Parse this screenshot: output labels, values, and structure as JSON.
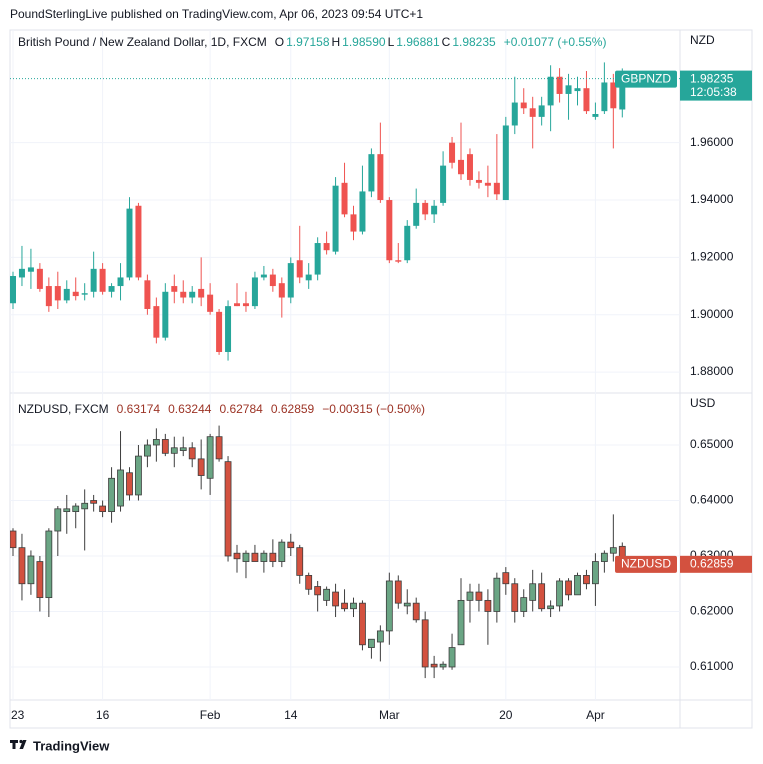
{
  "header": "PoundSterlingLive published on TradingView.com, Apr 06, 2023 09:54 UTC+1",
  "footer": "TradingView",
  "chart_data": [
    {
      "type": "candlestick",
      "title": "British Pound / New Zealand Dollar, 1D, FXCM",
      "legend_letters": [
        "O",
        "H",
        "L",
        "C"
      ],
      "legend_values": [
        "1.97158",
        "1.98590",
        "1.96881",
        "1.98235"
      ],
      "change": "+0.01077 (+0.55%)",
      "legend_color": "#26a69a",
      "currency": "NZD",
      "symbol": "GBPNZD",
      "countdown": "12:05:38",
      "up_color": "#26a69a",
      "down_color": "#ef5350",
      "border_color": null,
      "last_line": true,
      "open": [
        1.904,
        1.913,
        1.915,
        1.916,
        1.91,
        1.91,
        1.905,
        1.908,
        1.907,
        1.908,
        1.916,
        1.908,
        1.91,
        1.913,
        1.938,
        1.912,
        1.903,
        1.892,
        1.91,
        1.908,
        1.906,
        1.909,
        1.907,
        1.901,
        1.887,
        1.904,
        1.904,
        1.903,
        1.913,
        1.914,
        1.911,
        1.906,
        1.919,
        1.912,
        1.914,
        1.925,
        1.922,
        1.946,
        1.935,
        1.929,
        1.943,
        1.956,
        1.94,
        1.919,
        1.919,
        1.931,
        1.939,
        1.935,
        1.939,
        1.96,
        1.954,
        1.956,
        1.947,
        1.946,
        1.946,
        1.94,
        1.966,
        1.974,
        1.972,
        1.969,
        1.973,
        1.983,
        1.977,
        1.978,
        1.979,
        1.969,
        1.971,
        1.981,
        1.97158
      ],
      "high": [
        1.915,
        1.924,
        1.923,
        1.918,
        1.913,
        1.915,
        1.912,
        1.913,
        1.911,
        1.922,
        1.918,
        1.911,
        1.918,
        1.941,
        1.939,
        1.914,
        1.906,
        1.911,
        1.914,
        1.912,
        1.91,
        1.92,
        1.911,
        1.902,
        1.905,
        1.911,
        1.908,
        1.915,
        1.917,
        1.916,
        1.913,
        1.92,
        1.931,
        1.918,
        1.927,
        1.929,
        1.948,
        1.953,
        1.938,
        1.952,
        1.958,
        1.967,
        1.941,
        1.925,
        1.933,
        1.944,
        1.94,
        1.94,
        1.957,
        1.962,
        1.967,
        1.958,
        1.95,
        1.952,
        1.963,
        1.969,
        1.983,
        1.979,
        1.976,
        1.976,
        1.987,
        1.986,
        1.984,
        1.983,
        1.985,
        1.974,
        1.988,
        1.984,
        1.9859
      ],
      "low": [
        1.902,
        1.91,
        1.909,
        1.908,
        1.901,
        1.902,
        1.904,
        1.905,
        1.905,
        1.906,
        1.907,
        1.906,
        1.905,
        1.912,
        1.912,
        1.9,
        1.89,
        1.891,
        1.904,
        1.904,
        1.904,
        1.903,
        1.9,
        1.886,
        1.884,
        1.903,
        1.901,
        1.902,
        1.912,
        1.908,
        1.899,
        1.904,
        1.911,
        1.909,
        1.912,
        1.921,
        1.921,
        1.934,
        1.926,
        1.928,
        1.941,
        1.939,
        1.918,
        1.918,
        1.918,
        1.93,
        1.933,
        1.932,
        1.938,
        1.951,
        1.947,
        1.945,
        1.944,
        1.941,
        1.94,
        1.94,
        1.963,
        1.97,
        1.958,
        1.966,
        1.964,
        1.974,
        1.968,
        1.973,
        1.97,
        1.968,
        1.97,
        1.958,
        1.96881
      ],
      "close": [
        1.9135,
        1.916,
        1.9165,
        1.909,
        1.903,
        1.905,
        1.909,
        1.9065,
        1.9075,
        1.916,
        1.908,
        1.91,
        1.913,
        1.937,
        1.913,
        1.902,
        1.892,
        1.908,
        1.908,
        1.906,
        1.908,
        1.906,
        1.901,
        1.887,
        1.903,
        1.903,
        1.903,
        1.913,
        1.914,
        1.91,
        1.906,
        1.918,
        1.913,
        1.914,
        1.925,
        1.9225,
        1.945,
        1.935,
        1.929,
        1.943,
        1.956,
        1.94,
        1.919,
        1.9185,
        1.931,
        1.939,
        1.935,
        1.938,
        1.952,
        1.953,
        1.949,
        1.947,
        1.946,
        1.945,
        1.942,
        1.966,
        1.974,
        1.972,
        1.969,
        1.973,
        1.983,
        1.977,
        1.98,
        1.979,
        1.971,
        1.97,
        1.981,
        1.972,
        1.98235
      ],
      "xlim": [
        -0.335,
        74.44
      ],
      "ylim": [
        1.8727,
        1.9993
      ],
      "yticks": [
        {
          "value": 1.88,
          "label": "1.88000"
        },
        {
          "value": 1.9,
          "label": "1.90000"
        },
        {
          "value": 1.92,
          "label": "1.92000"
        },
        {
          "value": 1.94,
          "label": "1.94000"
        },
        {
          "value": 1.96,
          "label": "1.96000"
        }
      ],
      "grid": true
    },
    {
      "type": "candlestick",
      "title": "NZDUSD, FXCM",
      "legend_values": [
        "0.63174",
        "0.63244",
        "0.62784",
        "0.62859"
      ],
      "change": "−0.00315 (−0.50%)",
      "legend_color": "#9c3325",
      "currency": "USD",
      "symbol": "NZDUSD",
      "up_color": "#6aa584",
      "down_color": "#d3513f",
      "border_color": "#3d3d3d",
      "last_line": false,
      "open": [
        0.6345,
        0.6315,
        0.625,
        0.629,
        0.6225,
        0.6345,
        0.638,
        0.638,
        0.6385,
        0.64,
        0.639,
        0.638,
        0.639,
        0.645,
        0.641,
        0.648,
        0.65,
        0.651,
        0.6485,
        0.649,
        0.6495,
        0.6475,
        0.644,
        0.6515,
        0.647,
        0.6305,
        0.629,
        0.6305,
        0.629,
        0.6305,
        0.629,
        0.6325,
        0.6315,
        0.6265,
        0.6245,
        0.622,
        0.6235,
        0.6215,
        0.6205,
        0.6215,
        0.6135,
        0.6145,
        0.6165,
        0.6255,
        0.621,
        0.6215,
        0.6185,
        0.6105,
        0.61,
        0.61,
        0.614,
        0.622,
        0.6235,
        0.622,
        0.62,
        0.627,
        0.625,
        0.62,
        0.622,
        0.625,
        0.6205,
        0.621,
        0.6255,
        0.623,
        0.6265,
        0.625,
        0.629,
        0.6305,
        0.63174
      ],
      "high": [
        0.635,
        0.634,
        0.631,
        0.63,
        0.635,
        0.639,
        0.641,
        0.6395,
        0.642,
        0.641,
        0.64,
        0.646,
        0.6525,
        0.646,
        0.65,
        0.651,
        0.653,
        0.652,
        0.6515,
        0.6515,
        0.6505,
        0.651,
        0.652,
        0.6535,
        0.648,
        0.632,
        0.631,
        0.632,
        0.631,
        0.633,
        0.633,
        0.634,
        0.632,
        0.627,
        0.6255,
        0.6245,
        0.625,
        0.624,
        0.6225,
        0.622,
        0.615,
        0.6175,
        0.627,
        0.6265,
        0.624,
        0.6225,
        0.62,
        0.612,
        0.611,
        0.616,
        0.626,
        0.625,
        0.625,
        0.624,
        0.627,
        0.628,
        0.626,
        0.624,
        0.6275,
        0.627,
        0.622,
        0.626,
        0.626,
        0.627,
        0.6275,
        0.6305,
        0.631,
        0.6375,
        0.63244
      ],
      "low": [
        0.63,
        0.622,
        0.623,
        0.62,
        0.619,
        0.63,
        0.634,
        0.635,
        0.631,
        0.638,
        0.637,
        0.636,
        0.638,
        0.64,
        0.64,
        0.646,
        0.647,
        0.648,
        0.646,
        0.648,
        0.646,
        0.642,
        0.641,
        0.647,
        0.629,
        0.627,
        0.626,
        0.629,
        0.627,
        0.628,
        0.628,
        0.63,
        0.625,
        0.623,
        0.62,
        0.621,
        0.619,
        0.62,
        0.619,
        0.613,
        0.6115,
        0.611,
        0.614,
        0.6205,
        0.6195,
        0.618,
        0.608,
        0.608,
        0.6095,
        0.6095,
        0.614,
        0.618,
        0.62,
        0.614,
        0.618,
        0.623,
        0.618,
        0.619,
        0.62,
        0.62,
        0.619,
        0.62,
        0.622,
        0.623,
        0.624,
        0.621,
        0.627,
        0.629,
        0.62784
      ],
      "close": [
        0.6315,
        0.625,
        0.63,
        0.6225,
        0.6345,
        0.6385,
        0.6385,
        0.639,
        0.6395,
        0.6395,
        0.638,
        0.644,
        0.6455,
        0.641,
        0.648,
        0.65,
        0.651,
        0.6485,
        0.6495,
        0.6495,
        0.6475,
        0.6445,
        0.6515,
        0.6475,
        0.63,
        0.6295,
        0.6305,
        0.629,
        0.6305,
        0.629,
        0.6325,
        0.6315,
        0.6265,
        0.624,
        0.623,
        0.624,
        0.621,
        0.6205,
        0.6215,
        0.614,
        0.615,
        0.6165,
        0.6255,
        0.6215,
        0.6215,
        0.6185,
        0.61,
        0.61,
        0.6105,
        0.6135,
        0.622,
        0.6235,
        0.622,
        0.62,
        0.626,
        0.625,
        0.62,
        0.6225,
        0.625,
        0.6205,
        0.621,
        0.6255,
        0.623,
        0.6265,
        0.625,
        0.629,
        0.6305,
        0.6315,
        0.62859
      ],
      "xlim": [
        -0.335,
        74.44
      ],
      "ylim": [
        0.60405,
        0.65937
      ],
      "yticks": [
        {
          "value": 0.61,
          "label": "0.61000"
        },
        {
          "value": 0.62,
          "label": "0.62000"
        },
        {
          "value": 0.63,
          "label": "0.63000"
        },
        {
          "value": 0.64,
          "label": "0.64000"
        },
        {
          "value": 0.65,
          "label": "0.65000"
        }
      ],
      "xticks": [
        {
          "value": 0,
          "label": "23"
        },
        {
          "value": 10,
          "label": "16"
        },
        {
          "value": 22,
          "label": "Feb"
        },
        {
          "value": 31,
          "label": "14"
        },
        {
          "value": 42,
          "label": "Mar"
        },
        {
          "value": 55,
          "label": "20"
        },
        {
          "value": 65,
          "label": "Apr"
        }
      ],
      "grid": true
    }
  ]
}
